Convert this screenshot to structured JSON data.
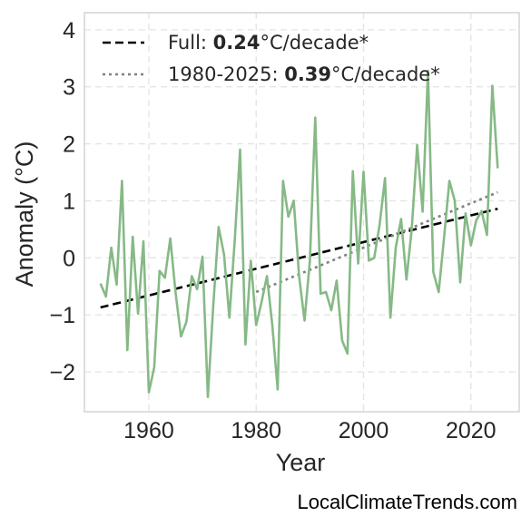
{
  "chart_data": {
    "type": "line",
    "xlabel": "Year",
    "ylabel": "Anomaly (°C)",
    "xlim": [
      1948,
      2029
    ],
    "ylim": [
      -2.7,
      4.3
    ],
    "x_ticks": [
      "1960",
      "1980",
      "2000",
      "2020"
    ],
    "x_tick_values": [
      1960,
      1980,
      2000,
      2020
    ],
    "y_ticks": [
      "4",
      "3",
      "2",
      "1",
      "0",
      "−1",
      "−2"
    ],
    "y_tick_values": [
      4,
      3,
      2,
      1,
      0,
      -1,
      -2
    ],
    "grid": true,
    "legend_position": "top-left",
    "series": [
      {
        "color": "#86b986",
        "x": [
          1951,
          1952,
          1953,
          1954,
          1955,
          1956,
          1957,
          1958,
          1959,
          1960,
          1961,
          1962,
          1963,
          1964,
          1965,
          1966,
          1967,
          1968,
          1969,
          1970,
          1971,
          1972,
          1973,
          1974,
          1975,
          1976,
          1977,
          1978,
          1979,
          1980,
          1981,
          1982,
          1983,
          1984,
          1985,
          1986,
          1987,
          1988,
          1989,
          1990,
          1991,
          1992,
          1993,
          1994,
          1995,
          1996,
          1997,
          1998,
          1999,
          2000,
          2001,
          2002,
          2003,
          2004,
          2005,
          2006,
          2007,
          2008,
          2009,
          2010,
          2011,
          2012,
          2013,
          2014,
          2015,
          2016,
          2017,
          2018,
          2019,
          2020,
          2021,
          2022,
          2023,
          2024,
          2025
        ],
        "y": [
          -0.45,
          -0.68,
          0.18,
          -0.47,
          1.35,
          -1.62,
          0.37,
          -0.98,
          0.29,
          -2.36,
          -1.92,
          -0.23,
          -0.35,
          0.34,
          -0.62,
          -1.38,
          -1.12,
          -0.32,
          -0.55,
          0.02,
          -2.44,
          -0.85,
          0.54,
          0.06,
          -1.05,
          0.3,
          1.9,
          -1.52,
          -0.05,
          -1.18,
          -0.78,
          -0.32,
          -1.18,
          -2.31,
          1.35,
          0.72,
          1.0,
          -0.32,
          -1.1,
          -0.05,
          2.46,
          -0.63,
          -0.6,
          -0.92,
          -0.4,
          -1.45,
          -1.68,
          1.52,
          -0.1,
          1.51,
          -0.05,
          0.0,
          0.58,
          1.4,
          -1.05,
          0.18,
          0.68,
          -0.38,
          0.52,
          1.98,
          0.81,
          3.28,
          -0.25,
          -0.6,
          0.35,
          1.35,
          1.0,
          -0.43,
          0.78,
          0.22,
          0.66,
          0.82,
          0.4,
          3.02,
          1.57
        ]
      },
      {
        "name": "Full: 0.24°C/decade*",
        "label_prefix": "Full: ",
        "label_value": "0.24",
        "label_suffix": "°C/decade*",
        "style": "dashed",
        "color": "#000000",
        "x": [
          1951,
          2025
        ],
        "y": [
          -0.87,
          0.86
        ]
      },
      {
        "name": "1980-2025: 0.39°C/decade*",
        "label_prefix": "1980-2025: ",
        "label_value": "0.39",
        "label_suffix": "°C/decade*",
        "style": "dotted",
        "color": "#808080",
        "x": [
          1980,
          2025
        ],
        "y": [
          -0.6,
          1.15
        ]
      }
    ]
  },
  "watermark": "LocalClimateTrends.com"
}
